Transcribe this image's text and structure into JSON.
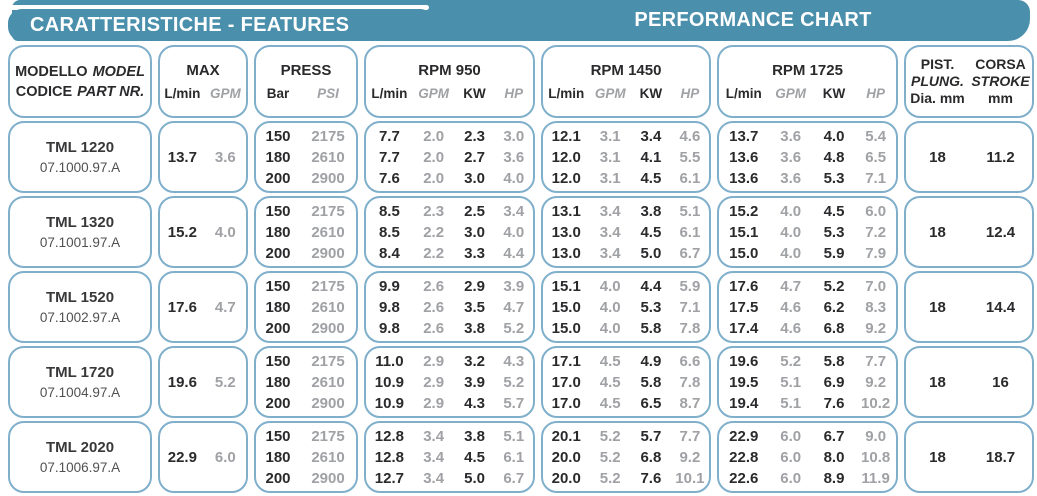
{
  "header_bar": {
    "left_title": "CARATTERISTICHE - FEATURES",
    "right_title": "PERFORMANCE CHART"
  },
  "colors": {
    "accent_teal": "#4A8FAB",
    "cell_border": "#7FAFCB",
    "ink": "#2A2A2C",
    "muted": "#9FA1A4"
  },
  "table": {
    "headers": {
      "model": {
        "line1_normal": "MODELLO",
        "line1_italic": "MODEL",
        "line2_normal": "CODICE",
        "line2_italic": "PART NR."
      },
      "max": {
        "title": "MAX",
        "units": [
          "L/min",
          "GPM"
        ]
      },
      "press": {
        "title": "PRESS",
        "units": [
          "Bar",
          "PSI"
        ]
      },
      "rpm950": {
        "title": "RPM 950",
        "units": [
          "L/min",
          "GPM",
          "KW",
          "HP"
        ]
      },
      "rpm1450": {
        "title": "RPM 1450",
        "units": [
          "L/min",
          "GPM",
          "KW",
          "HP"
        ]
      },
      "rpm1725": {
        "title": "RPM 1725",
        "units": [
          "L/min",
          "GPM",
          "KW",
          "HP"
        ]
      },
      "pist_corsa": {
        "col1": [
          "PIST.",
          "PLUNG.",
          "Dia. mm"
        ],
        "col2": [
          "CORSA",
          "STROKE",
          "mm"
        ]
      }
    },
    "rows": [
      {
        "model": "TML 1220",
        "code": "07.1000.97.A",
        "max": [
          "13.7",
          "3.6"
        ],
        "press": [
          [
            "150",
            "2175"
          ],
          [
            "180",
            "2610"
          ],
          [
            "200",
            "2900"
          ]
        ],
        "rpm950": [
          [
            "7.7",
            "2.0",
            "2.3",
            "3.0"
          ],
          [
            "7.7",
            "2.0",
            "2.7",
            "3.6"
          ],
          [
            "7.6",
            "2.0",
            "3.0",
            "4.0"
          ]
        ],
        "rpm1450": [
          [
            "12.1",
            "3.1",
            "3.4",
            "4.6"
          ],
          [
            "12.0",
            "3.1",
            "4.1",
            "5.5"
          ],
          [
            "12.0",
            "3.1",
            "4.5",
            "6.1"
          ]
        ],
        "rpm1725": [
          [
            "13.7",
            "3.6",
            "4.0",
            "5.4"
          ],
          [
            "13.6",
            "3.6",
            "4.8",
            "6.5"
          ],
          [
            "13.6",
            "3.6",
            "5.3",
            "7.1"
          ]
        ],
        "pist": "18",
        "corsa": "11.2"
      },
      {
        "model": "TML 1320",
        "code": "07.1001.97.A",
        "max": [
          "15.2",
          "4.0"
        ],
        "press": [
          [
            "150",
            "2175"
          ],
          [
            "180",
            "2610"
          ],
          [
            "200",
            "2900"
          ]
        ],
        "rpm950": [
          [
            "8.5",
            "2.3",
            "2.5",
            "3.4"
          ],
          [
            "8.5",
            "2.2",
            "3.0",
            "4.0"
          ],
          [
            "8.4",
            "2.2",
            "3.3",
            "4.4"
          ]
        ],
        "rpm1450": [
          [
            "13.1",
            "3.4",
            "3.8",
            "5.1"
          ],
          [
            "13.0",
            "3.4",
            "4.5",
            "6.1"
          ],
          [
            "13.0",
            "3.4",
            "5.0",
            "6.7"
          ]
        ],
        "rpm1725": [
          [
            "15.2",
            "4.0",
            "4.5",
            "6.0"
          ],
          [
            "15.1",
            "4.0",
            "5.3",
            "7.2"
          ],
          [
            "15.0",
            "4.0",
            "5.9",
            "7.9"
          ]
        ],
        "pist": "18",
        "corsa": "12.4"
      },
      {
        "model": "TML 1520",
        "code": "07.1002.97.A",
        "max": [
          "17.6",
          "4.7"
        ],
        "press": [
          [
            "150",
            "2175"
          ],
          [
            "180",
            "2610"
          ],
          [
            "200",
            "2900"
          ]
        ],
        "rpm950": [
          [
            "9.9",
            "2.6",
            "2.9",
            "3.9"
          ],
          [
            "9.8",
            "2.6",
            "3.5",
            "4.7"
          ],
          [
            "9.8",
            "2.6",
            "3.8",
            "5.2"
          ]
        ],
        "rpm1450": [
          [
            "15.1",
            "4.0",
            "4.4",
            "5.9"
          ],
          [
            "15.0",
            "4.0",
            "5.3",
            "7.1"
          ],
          [
            "15.0",
            "4.0",
            "5.8",
            "7.8"
          ]
        ],
        "rpm1725": [
          [
            "17.6",
            "4.7",
            "5.2",
            "7.0"
          ],
          [
            "17.5",
            "4.6",
            "6.2",
            "8.3"
          ],
          [
            "17.4",
            "4.6",
            "6.8",
            "9.2"
          ]
        ],
        "pist": "18",
        "corsa": "14.4"
      },
      {
        "model": "TML 1720",
        "code": "07.1004.97.A",
        "max": [
          "19.6",
          "5.2"
        ],
        "press": [
          [
            "150",
            "2175"
          ],
          [
            "180",
            "2610"
          ],
          [
            "200",
            "2900"
          ]
        ],
        "rpm950": [
          [
            "11.0",
            "2.9",
            "3.2",
            "4.3"
          ],
          [
            "10.9",
            "2.9",
            "3.9",
            "5.2"
          ],
          [
            "10.9",
            "2.9",
            "4.3",
            "5.7"
          ]
        ],
        "rpm1450": [
          [
            "17.1",
            "4.5",
            "4.9",
            "6.6"
          ],
          [
            "17.0",
            "4.5",
            "5.8",
            "7.8"
          ],
          [
            "17.0",
            "4.5",
            "6.5",
            "8.7"
          ]
        ],
        "rpm1725": [
          [
            "19.6",
            "5.2",
            "5.8",
            "7.7"
          ],
          [
            "19.5",
            "5.1",
            "6.9",
            "9.2"
          ],
          [
            "19.4",
            "5.1",
            "7.6",
            "10.2"
          ]
        ],
        "pist": "18",
        "corsa": "16"
      },
      {
        "model": "TML 2020",
        "code": "07.1006.97.A",
        "max": [
          "22.9",
          "6.0"
        ],
        "press": [
          [
            "150",
            "2175"
          ],
          [
            "180",
            "2610"
          ],
          [
            "200",
            "2900"
          ]
        ],
        "rpm950": [
          [
            "12.8",
            "3.4",
            "3.8",
            "5.1"
          ],
          [
            "12.8",
            "3.4",
            "4.5",
            "6.1"
          ],
          [
            "12.7",
            "3.4",
            "5.0",
            "6.7"
          ]
        ],
        "rpm1450": [
          [
            "20.1",
            "5.2",
            "5.7",
            "7.7"
          ],
          [
            "20.0",
            "5.2",
            "6.8",
            "9.2"
          ],
          [
            "20.0",
            "5.2",
            "7.6",
            "10.1"
          ]
        ],
        "rpm1725": [
          [
            "22.9",
            "6.0",
            "6.7",
            "9.0"
          ],
          [
            "22.8",
            "6.0",
            "8.0",
            "10.8"
          ],
          [
            "22.6",
            "6.0",
            "8.9",
            "11.9"
          ]
        ],
        "pist": "18",
        "corsa": "18.7"
      }
    ]
  }
}
